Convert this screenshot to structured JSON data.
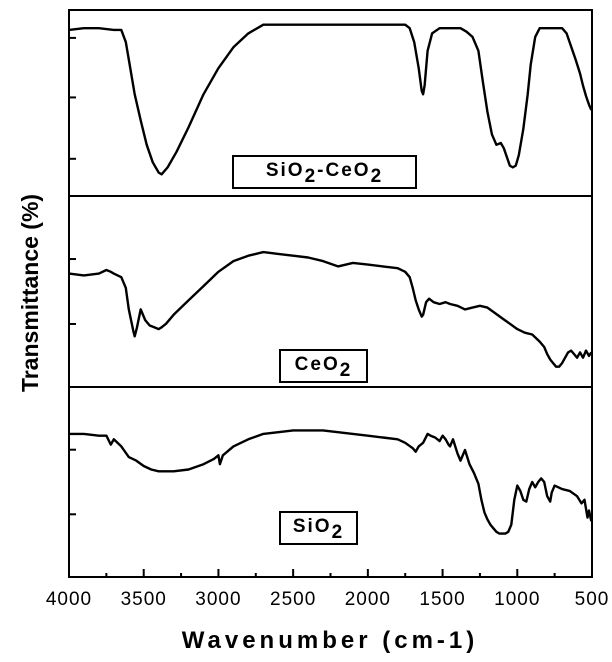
{
  "chart_data": {
    "type": "line",
    "title": "",
    "xlabel": "Wavenumber (cm-1)",
    "ylabel": "Transmittance (%)",
    "xlim": [
      4000,
      500
    ],
    "x_reversed": true,
    "x_ticks": [
      4000,
      3500,
      3000,
      2500,
      2000,
      1500,
      1000,
      500
    ],
    "grid": false,
    "legend": "none",
    "line_color": "#000000",
    "series": [
      {
        "name": "SiO2-CeO2",
        "label_parts": [
          "SiO",
          "2",
          "-CeO",
          "2"
        ],
        "ylim": [
          0,
          1
        ],
        "points": [
          [
            4000,
            0.92
          ],
          [
            3900,
            0.93
          ],
          [
            3800,
            0.93
          ],
          [
            3700,
            0.92
          ],
          [
            3650,
            0.92
          ],
          [
            3620,
            0.85
          ],
          [
            3600,
            0.75
          ],
          [
            3560,
            0.55
          ],
          [
            3520,
            0.4
          ],
          [
            3480,
            0.26
          ],
          [
            3440,
            0.16
          ],
          [
            3400,
            0.1
          ],
          [
            3380,
            0.09
          ],
          [
            3340,
            0.13
          ],
          [
            3280,
            0.22
          ],
          [
            3200,
            0.36
          ],
          [
            3100,
            0.55
          ],
          [
            3000,
            0.7
          ],
          [
            2900,
            0.82
          ],
          [
            2800,
            0.9
          ],
          [
            2700,
            0.95
          ],
          [
            2600,
            0.95
          ],
          [
            2500,
            0.95
          ],
          [
            2400,
            0.95
          ],
          [
            2200,
            0.95
          ],
          [
            2000,
            0.95
          ],
          [
            1800,
            0.95
          ],
          [
            1750,
            0.95
          ],
          [
            1720,
            0.93
          ],
          [
            1690,
            0.85
          ],
          [
            1660,
            0.7
          ],
          [
            1640,
            0.57
          ],
          [
            1630,
            0.55
          ],
          [
            1620,
            0.6
          ],
          [
            1600,
            0.8
          ],
          [
            1570,
            0.9
          ],
          [
            1520,
            0.93
          ],
          [
            1450,
            0.93
          ],
          [
            1380,
            0.93
          ],
          [
            1340,
            0.91
          ],
          [
            1300,
            0.88
          ],
          [
            1260,
            0.8
          ],
          [
            1230,
            0.62
          ],
          [
            1200,
            0.45
          ],
          [
            1170,
            0.32
          ],
          [
            1140,
            0.26
          ],
          [
            1110,
            0.27
          ],
          [
            1090,
            0.24
          ],
          [
            1070,
            0.19
          ],
          [
            1050,
            0.14
          ],
          [
            1030,
            0.13
          ],
          [
            1010,
            0.14
          ],
          [
            990,
            0.2
          ],
          [
            960,
            0.35
          ],
          [
            930,
            0.55
          ],
          [
            910,
            0.72
          ],
          [
            880,
            0.88
          ],
          [
            850,
            0.93
          ],
          [
            800,
            0.93
          ],
          [
            750,
            0.93
          ],
          [
            700,
            0.93
          ],
          [
            670,
            0.9
          ],
          [
            650,
            0.85
          ],
          [
            630,
            0.8
          ],
          [
            610,
            0.75
          ],
          [
            580,
            0.67
          ],
          [
            560,
            0.6
          ],
          [
            540,
            0.54
          ],
          [
            520,
            0.49
          ],
          [
            505,
            0.46
          ]
        ]
      },
      {
        "name": "CeO2",
        "label_parts": [
          "CeO",
          "2"
        ],
        "ylim": [
          0,
          1
        ],
        "points": [
          [
            4000,
            0.6
          ],
          [
            3900,
            0.59
          ],
          [
            3800,
            0.6
          ],
          [
            3750,
            0.62
          ],
          [
            3720,
            0.61
          ],
          [
            3700,
            0.6
          ],
          [
            3650,
            0.58
          ],
          [
            3620,
            0.52
          ],
          [
            3600,
            0.4
          ],
          [
            3570,
            0.28
          ],
          [
            3560,
            0.25
          ],
          [
            3545,
            0.3
          ],
          [
            3520,
            0.4
          ],
          [
            3490,
            0.34
          ],
          [
            3460,
            0.31
          ],
          [
            3430,
            0.3
          ],
          [
            3400,
            0.29
          ],
          [
            3380,
            0.3
          ],
          [
            3350,
            0.32
          ],
          [
            3300,
            0.37
          ],
          [
            3200,
            0.45
          ],
          [
            3100,
            0.53
          ],
          [
            3000,
            0.61
          ],
          [
            2900,
            0.67
          ],
          [
            2800,
            0.7
          ],
          [
            2700,
            0.72
          ],
          [
            2600,
            0.71
          ],
          [
            2500,
            0.7
          ],
          [
            2400,
            0.69
          ],
          [
            2300,
            0.67
          ],
          [
            2200,
            0.64
          ],
          [
            2100,
            0.66
          ],
          [
            2000,
            0.65
          ],
          [
            1900,
            0.64
          ],
          [
            1800,
            0.63
          ],
          [
            1750,
            0.61
          ],
          [
            1720,
            0.58
          ],
          [
            1700,
            0.52
          ],
          [
            1680,
            0.45
          ],
          [
            1660,
            0.4
          ],
          [
            1640,
            0.36
          ],
          [
            1630,
            0.37
          ],
          [
            1610,
            0.44
          ],
          [
            1590,
            0.46
          ],
          [
            1560,
            0.44
          ],
          [
            1520,
            0.43
          ],
          [
            1480,
            0.44
          ],
          [
            1450,
            0.43
          ],
          [
            1400,
            0.42
          ],
          [
            1350,
            0.4
          ],
          [
            1300,
            0.41
          ],
          [
            1250,
            0.42
          ],
          [
            1200,
            0.41
          ],
          [
            1150,
            0.38
          ],
          [
            1100,
            0.35
          ],
          [
            1050,
            0.32
          ],
          [
            1000,
            0.29
          ],
          [
            950,
            0.27
          ],
          [
            900,
            0.26
          ],
          [
            850,
            0.22
          ],
          [
            820,
            0.19
          ],
          [
            800,
            0.15
          ],
          [
            780,
            0.12
          ],
          [
            760,
            0.1
          ],
          [
            740,
            0.08
          ],
          [
            720,
            0.08
          ],
          [
            700,
            0.1
          ],
          [
            680,
            0.13
          ],
          [
            660,
            0.16
          ],
          [
            640,
            0.17
          ],
          [
            620,
            0.15
          ],
          [
            600,
            0.13
          ],
          [
            580,
            0.16
          ],
          [
            560,
            0.13
          ],
          [
            540,
            0.17
          ],
          [
            520,
            0.14
          ],
          [
            505,
            0.16
          ]
        ]
      },
      {
        "name": "SiO2",
        "label_parts": [
          "SiO",
          "2"
        ],
        "ylim": [
          0,
          1
        ],
        "points": [
          [
            4000,
            0.77
          ],
          [
            3900,
            0.77
          ],
          [
            3800,
            0.76
          ],
          [
            3750,
            0.76
          ],
          [
            3720,
            0.71
          ],
          [
            3700,
            0.74
          ],
          [
            3650,
            0.7
          ],
          [
            3600,
            0.64
          ],
          [
            3550,
            0.62
          ],
          [
            3500,
            0.59
          ],
          [
            3450,
            0.57
          ],
          [
            3400,
            0.56
          ],
          [
            3300,
            0.56
          ],
          [
            3200,
            0.57
          ],
          [
            3100,
            0.6
          ],
          [
            3030,
            0.63
          ],
          [
            3000,
            0.65
          ],
          [
            2990,
            0.6
          ],
          [
            2970,
            0.65
          ],
          [
            2900,
            0.7
          ],
          [
            2800,
            0.74
          ],
          [
            2700,
            0.77
          ],
          [
            2600,
            0.78
          ],
          [
            2500,
            0.79
          ],
          [
            2400,
            0.79
          ],
          [
            2300,
            0.79
          ],
          [
            2200,
            0.78
          ],
          [
            2100,
            0.77
          ],
          [
            2000,
            0.76
          ],
          [
            1900,
            0.75
          ],
          [
            1800,
            0.74
          ],
          [
            1750,
            0.72
          ],
          [
            1700,
            0.69
          ],
          [
            1680,
            0.67
          ],
          [
            1660,
            0.7
          ],
          [
            1630,
            0.72
          ],
          [
            1600,
            0.77
          ],
          [
            1580,
            0.76
          ],
          [
            1550,
            0.75
          ],
          [
            1520,
            0.73
          ],
          [
            1500,
            0.76
          ],
          [
            1480,
            0.74
          ],
          [
            1460,
            0.71
          ],
          [
            1450,
            0.7
          ],
          [
            1430,
            0.74
          ],
          [
            1400,
            0.66
          ],
          [
            1380,
            0.62
          ],
          [
            1350,
            0.68
          ],
          [
            1320,
            0.6
          ],
          [
            1290,
            0.55
          ],
          [
            1260,
            0.49
          ],
          [
            1240,
            0.4
          ],
          [
            1220,
            0.33
          ],
          [
            1200,
            0.29
          ],
          [
            1180,
            0.26
          ],
          [
            1160,
            0.24
          ],
          [
            1140,
            0.22
          ],
          [
            1120,
            0.21
          ],
          [
            1100,
            0.21
          ],
          [
            1080,
            0.21
          ],
          [
            1060,
            0.22
          ],
          [
            1040,
            0.26
          ],
          [
            1020,
            0.4
          ],
          [
            1000,
            0.48
          ],
          [
            980,
            0.45
          ],
          [
            960,
            0.4
          ],
          [
            940,
            0.39
          ],
          [
            920,
            0.46
          ],
          [
            900,
            0.5
          ],
          [
            880,
            0.47
          ],
          [
            860,
            0.5
          ],
          [
            840,
            0.52
          ],
          [
            820,
            0.5
          ],
          [
            800,
            0.42
          ],
          [
            780,
            0.39
          ],
          [
            770,
            0.44
          ],
          [
            750,
            0.48
          ],
          [
            700,
            0.46
          ],
          [
            650,
            0.45
          ],
          [
            600,
            0.42
          ],
          [
            570,
            0.38
          ],
          [
            550,
            0.4
          ],
          [
            530,
            0.3
          ],
          [
            520,
            0.34
          ],
          [
            505,
            0.28
          ]
        ]
      }
    ]
  }
}
